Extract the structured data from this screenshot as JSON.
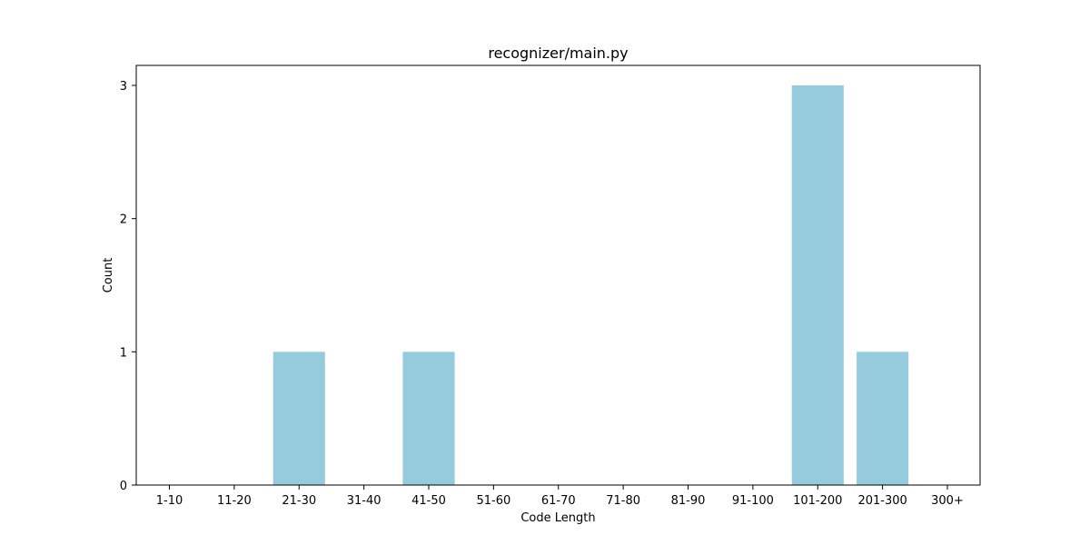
{
  "chart_data": {
    "type": "bar",
    "title": "recognizer/main.py",
    "xlabel": "Code Length",
    "ylabel": "Count",
    "categories": [
      "1-10",
      "11-20",
      "21-30",
      "31-40",
      "41-50",
      "51-60",
      "61-70",
      "71-80",
      "81-90",
      "91-100",
      "101-200",
      "201-300",
      "300+"
    ],
    "values": [
      0,
      0,
      1,
      0,
      1,
      0,
      0,
      0,
      0,
      0,
      3,
      1,
      0
    ],
    "ylim": [
      0,
      3.15
    ],
    "yticks": [
      0,
      1,
      2,
      3
    ],
    "grid": false,
    "legend": "none",
    "bar_color": "#96cadd"
  }
}
